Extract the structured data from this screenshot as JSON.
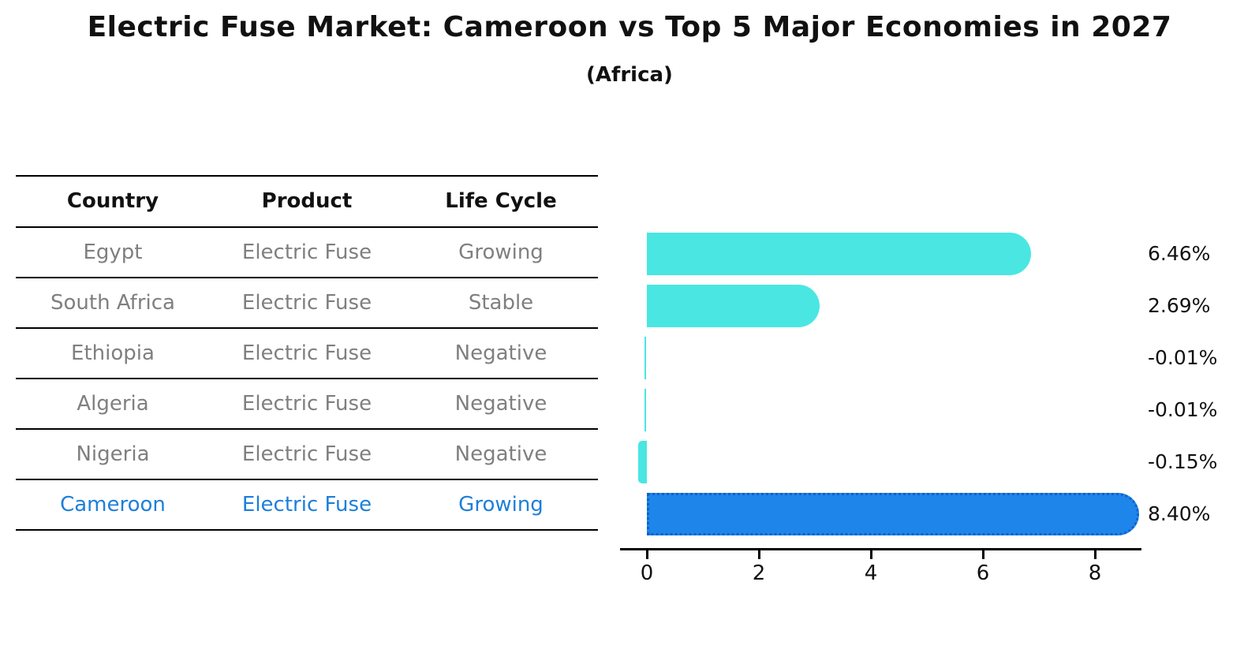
{
  "title": "Electric Fuse Market: Cameroon vs Top 5 Major Economies in 2027",
  "subtitle": "(Africa)",
  "table": {
    "headers": [
      "Country",
      "Product",
      "Life Cycle"
    ],
    "rows": [
      {
        "country": "Egypt",
        "product": "Electric Fuse",
        "life_cycle": "Growing"
      },
      {
        "country": "South Africa",
        "product": "Electric Fuse",
        "life_cycle": "Stable"
      },
      {
        "country": "Ethiopia",
        "product": "Electric Fuse",
        "life_cycle": "Negative"
      },
      {
        "country": "Algeria",
        "product": "Electric Fuse",
        "life_cycle": "Negative"
      },
      {
        "country": "Nigeria",
        "product": "Electric Fuse",
        "life_cycle": "Negative"
      },
      {
        "country": "Cameroon",
        "product": "Electric Fuse",
        "life_cycle": "Growing"
      }
    ],
    "highlight_row": "Cameroon"
  },
  "chart_data": {
    "type": "bar",
    "orientation": "horizontal",
    "title": "Electric Fuse Market: Cameroon vs Top 5 Major Economies in 2027 (Africa)",
    "categories": [
      "Egypt",
      "South Africa",
      "Ethiopia",
      "Algeria",
      "Nigeria",
      "Cameroon"
    ],
    "values": [
      6.46,
      2.69,
      -0.01,
      -0.01,
      -0.15,
      8.4
    ],
    "value_labels": [
      "6.46%",
      "2.69%",
      "-0.01%",
      "-0.01%",
      "-0.15%",
      "8.40%"
    ],
    "xticks": [
      "0",
      "2",
      "4",
      "6",
      "8"
    ],
    "xlim": [
      -0.6,
      8.8
    ],
    "grid": false,
    "legend": false,
    "bar_color": "#4ae6e2",
    "highlight_bar_color": "#1e85ea",
    "highlight_border_color": "#1161cc",
    "highlight_index": 5
  },
  "colors": {
    "background": "#ffffff",
    "title_text": "#111111",
    "row_text": "#7f7f7f",
    "highlight_text": "#1d7fd9",
    "axis": "#000000"
  }
}
